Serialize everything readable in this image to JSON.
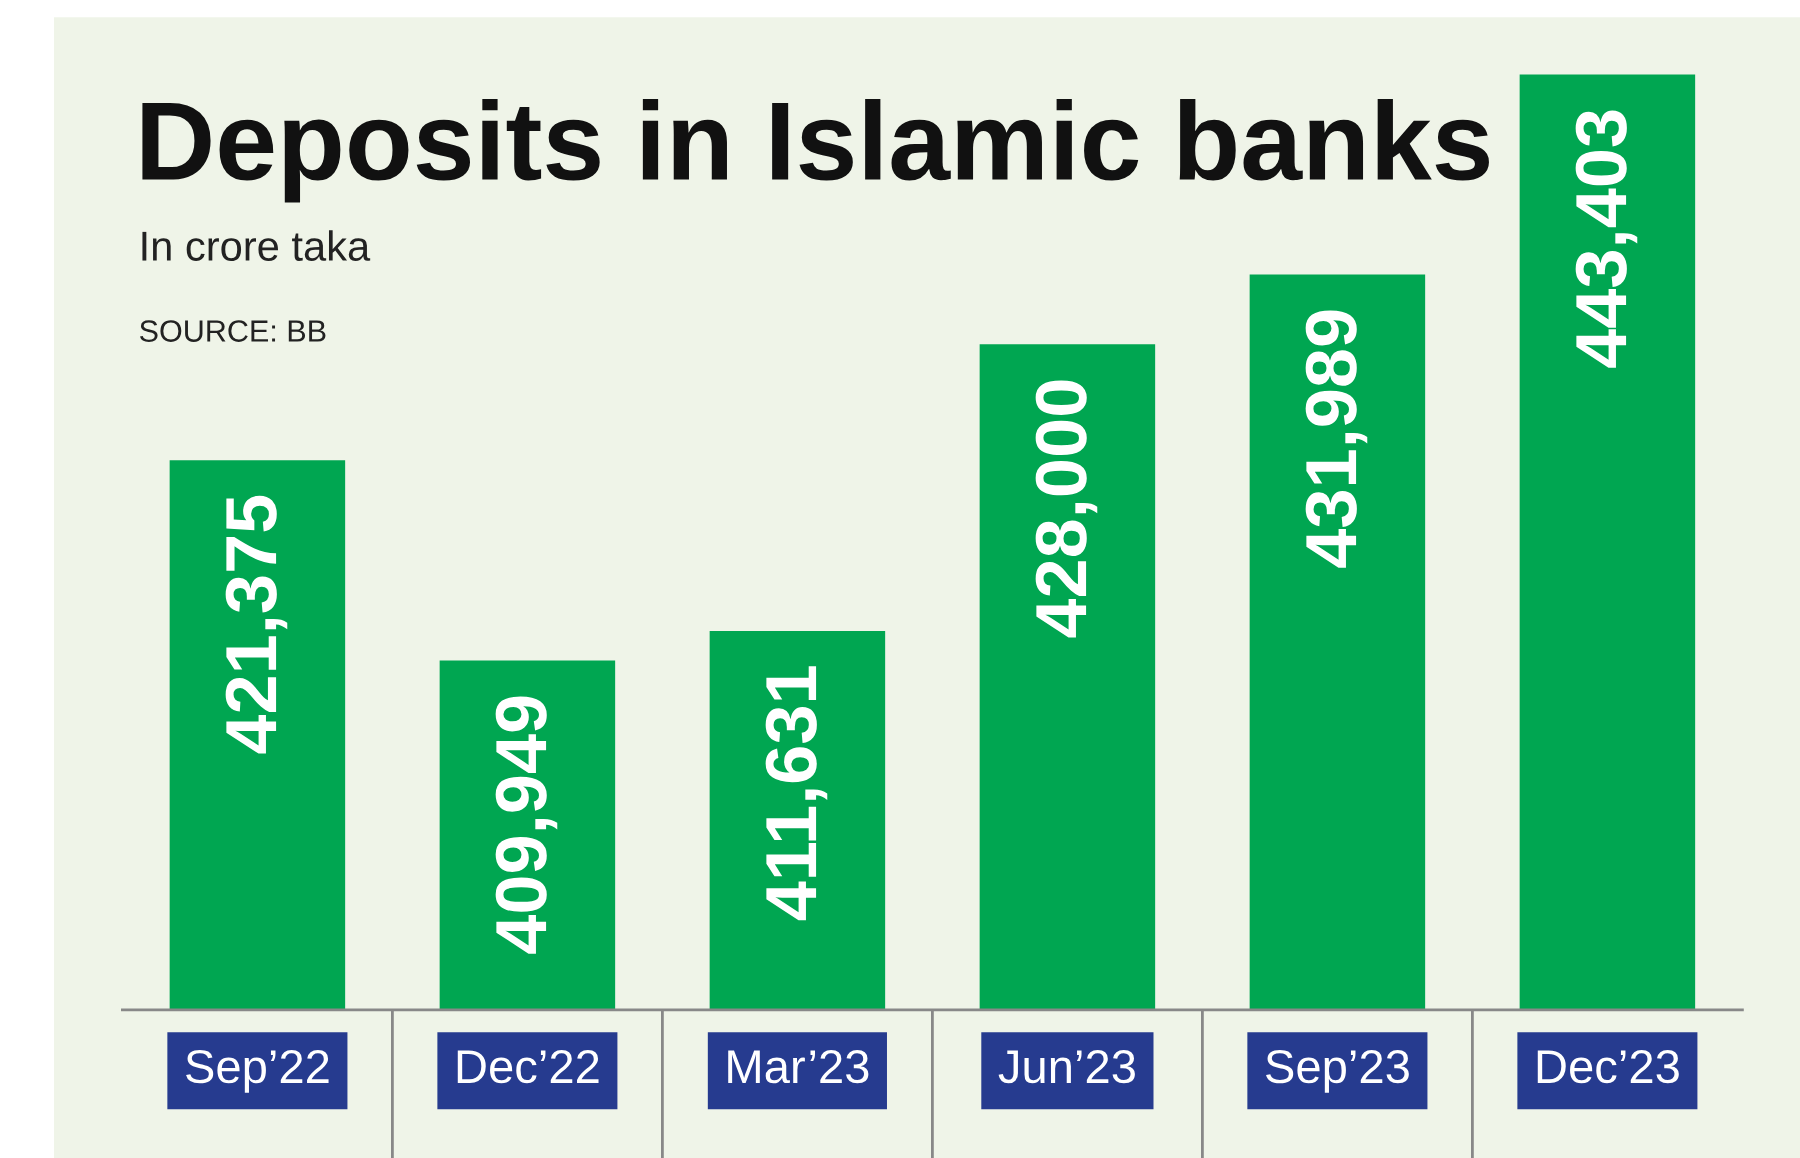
{
  "chart_data": {
    "type": "bar",
    "title": "Deposits in Islamic banks",
    "subtitle": "In crore taka",
    "annotations": [
      "SOURCE: BB"
    ],
    "categories": [
      "Sep’22",
      "Dec’22",
      "Mar’23",
      "Jun’23",
      "Sep’23",
      "Dec’23"
    ],
    "values": [
      421375,
      409949,
      411631,
      428000,
      431989,
      443403
    ],
    "value_labels": [
      "421,375",
      "409,949",
      "411,631",
      "428,000",
      "431,989",
      "443,403"
    ],
    "color": "#00a651",
    "ylim": [
      390000,
      447000
    ],
    "tick_labels": "x",
    "grid": false,
    "legend": false
  }
}
